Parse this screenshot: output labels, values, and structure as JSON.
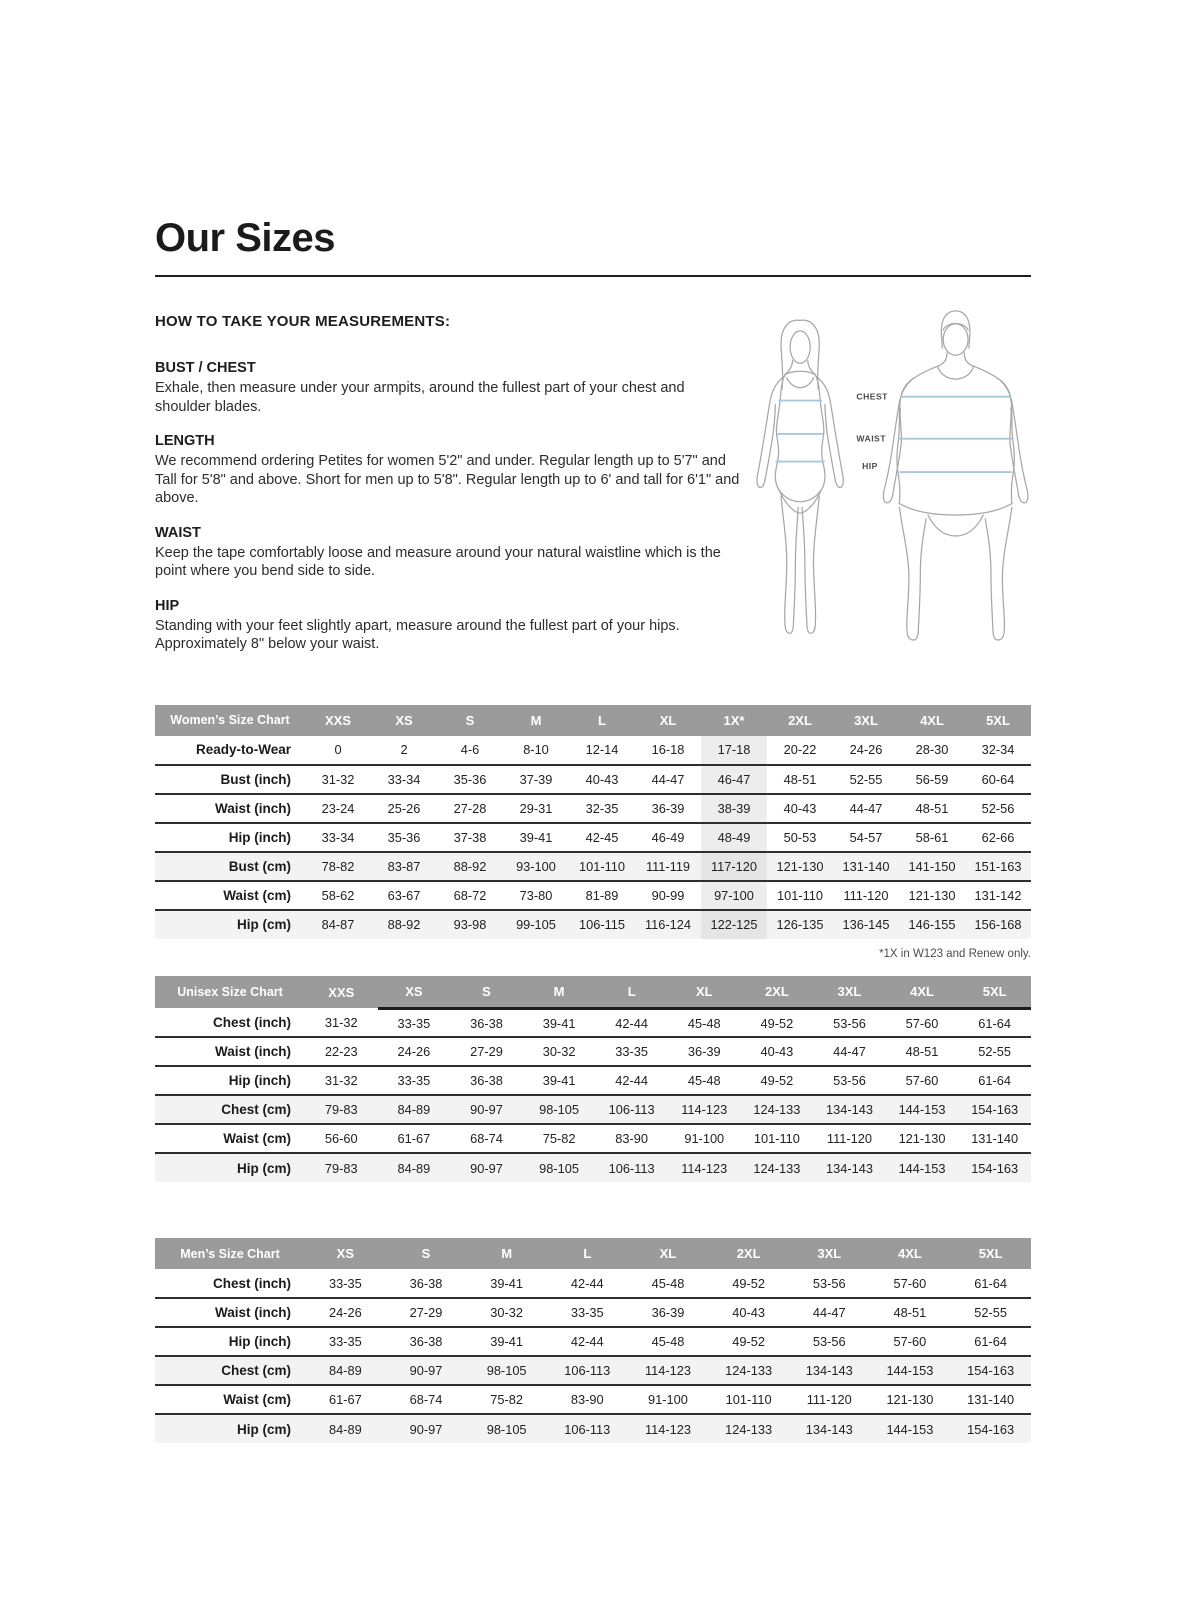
{
  "page": {
    "title": "Our Sizes"
  },
  "instructions": {
    "heading": "HOW TO TAKE YOUR MEASUREMENTS:",
    "sections": [
      {
        "title": "BUST / CHEST",
        "body": "Exhale, then measure under your armpits, around the fullest part of your chest and shoulder blades."
      },
      {
        "title": "LENGTH",
        "body": "We recommend ordering Petites for women 5'2\" and under. Regular length up to 5'7\" and Tall for 5'8\" and above. Short for men up to 5'8\". Regular length up to 6' and tall for 6'1\" and above."
      },
      {
        "title": "WAIST",
        "body": "Keep the tape comfortably loose and measure around your natural waistline which is the point where you bend side to side."
      },
      {
        "title": "HIP",
        "body": "Standing with your feet slightly apart, measure around the fullest part of your hips. Approximately 8\" below your waist."
      }
    ]
  },
  "figure": {
    "labels": [
      "CHEST",
      "WAIST",
      "HIP"
    ],
    "line_color": "#a9c8d6",
    "outline_color": "#a6a6a6",
    "label_color": "#4a4a4a"
  },
  "tables": [
    {
      "name": "Women’s Size Chart",
      "columns": [
        "XXS",
        "XS",
        "S",
        "M",
        "L",
        "XL",
        "1X*",
        "2XL",
        "3XL",
        "4XL",
        "5XL"
      ],
      "highlight_col": 6,
      "header_underline_from": null,
      "rows": [
        {
          "label": "Ready-to-Wear",
          "shaded": false,
          "cells": [
            "0",
            "2",
            "4-6",
            "8-10",
            "12-14",
            "16-18",
            "17-18",
            "20-22",
            "24-26",
            "28-30",
            "32-34"
          ]
        },
        {
          "label": "Bust (inch)",
          "shaded": false,
          "cells": [
            "31-32",
            "33-34",
            "35-36",
            "37-39",
            "40-43",
            "44-47",
            "46-47",
            "48-51",
            "52-55",
            "56-59",
            "60-64"
          ]
        },
        {
          "label": "Waist (inch)",
          "shaded": false,
          "cells": [
            "23-24",
            "25-26",
            "27-28",
            "29-31",
            "32-35",
            "36-39",
            "38-39",
            "40-43",
            "44-47",
            "48-51",
            "52-56"
          ]
        },
        {
          "label": "Hip (inch)",
          "shaded": false,
          "cells": [
            "33-34",
            "35-36",
            "37-38",
            "39-41",
            "42-45",
            "46-49",
            "48-49",
            "50-53",
            "54-57",
            "58-61",
            "62-66"
          ]
        },
        {
          "label": "Bust (cm)",
          "shaded": true,
          "cells": [
            "78-82",
            "83-87",
            "88-92",
            "93-100",
            "101-110",
            "111-119",
            "117-120",
            "121-130",
            "131-140",
            "141-150",
            "151-163"
          ]
        },
        {
          "label": "Waist (cm)",
          "shaded": false,
          "cells": [
            "58-62",
            "63-67",
            "68-72",
            "73-80",
            "81-89",
            "90-99",
            "97-100",
            "101-110",
            "111-120",
            "121-130",
            "131-142"
          ]
        },
        {
          "label": "Hip (cm)",
          "shaded": true,
          "cells": [
            "84-87",
            "88-92",
            "93-98",
            "99-105",
            "106-115",
            "116-124",
            "122-125",
            "126-135",
            "136-145",
            "146-155",
            "156-168"
          ]
        }
      ],
      "footnote": "*1X in W123 and Renew only."
    },
    {
      "name": "Unisex Size Chart",
      "columns": [
        "XXS",
        "XS",
        "S",
        "M",
        "L",
        "XL",
        "2XL",
        "3XL",
        "4XL",
        "5XL"
      ],
      "highlight_col": null,
      "header_underline_from": 1,
      "rows": [
        {
          "label": "Chest (inch)",
          "shaded": false,
          "cells": [
            "31-32",
            "33-35",
            "36-38",
            "39-41",
            "42-44",
            "45-48",
            "49-52",
            "53-56",
            "57-60",
            "61-64"
          ]
        },
        {
          "label": "Waist (inch)",
          "shaded": false,
          "cells": [
            "22-23",
            "24-26",
            "27-29",
            "30-32",
            "33-35",
            "36-39",
            "40-43",
            "44-47",
            "48-51",
            "52-55"
          ]
        },
        {
          "label": "Hip (inch)",
          "shaded": false,
          "cells": [
            "31-32",
            "33-35",
            "36-38",
            "39-41",
            "42-44",
            "45-48",
            "49-52",
            "53-56",
            "57-60",
            "61-64"
          ]
        },
        {
          "label": "Chest (cm)",
          "shaded": true,
          "cells": [
            "79-83",
            "84-89",
            "90-97",
            "98-105",
            "106-113",
            "114-123",
            "124-133",
            "134-143",
            "144-153",
            "154-163"
          ]
        },
        {
          "label": "Waist (cm)",
          "shaded": false,
          "cells": [
            "56-60",
            "61-67",
            "68-74",
            "75-82",
            "83-90",
            "91-100",
            "101-110",
            "111-120",
            "121-130",
            "131-140"
          ]
        },
        {
          "label": "Hip (cm)",
          "shaded": true,
          "cells": [
            "79-83",
            "84-89",
            "90-97",
            "98-105",
            "106-113",
            "114-123",
            "124-133",
            "134-143",
            "144-153",
            "154-163"
          ]
        }
      ],
      "footnote": ""
    },
    {
      "name": "Men’s Size Chart",
      "columns": [
        "XS",
        "S",
        "M",
        "L",
        "XL",
        "2XL",
        "3XL",
        "4XL",
        "5XL"
      ],
      "highlight_col": null,
      "header_underline_from": null,
      "rows": [
        {
          "label": "Chest (inch)",
          "shaded": false,
          "cells": [
            "33-35",
            "36-38",
            "39-41",
            "42-44",
            "45-48",
            "49-52",
            "53-56",
            "57-60",
            "61-64"
          ]
        },
        {
          "label": "Waist (inch)",
          "shaded": false,
          "cells": [
            "24-26",
            "27-29",
            "30-32",
            "33-35",
            "36-39",
            "40-43",
            "44-47",
            "48-51",
            "52-55"
          ]
        },
        {
          "label": "Hip (inch)",
          "shaded": false,
          "cells": [
            "33-35",
            "36-38",
            "39-41",
            "42-44",
            "45-48",
            "49-52",
            "53-56",
            "57-60",
            "61-64"
          ]
        },
        {
          "label": "Chest (cm)",
          "shaded": true,
          "cells": [
            "84-89",
            "90-97",
            "98-105",
            "106-113",
            "114-123",
            "124-133",
            "134-143",
            "144-153",
            "154-163"
          ]
        },
        {
          "label": "Waist (cm)",
          "shaded": false,
          "cells": [
            "61-67",
            "68-74",
            "75-82",
            "83-90",
            "91-100",
            "101-110",
            "111-120",
            "121-130",
            "131-140"
          ]
        },
        {
          "label": "Hip (cm)",
          "shaded": true,
          "cells": [
            "84-89",
            "90-97",
            "98-105",
            "106-113",
            "114-123",
            "124-133",
            "134-143",
            "144-153",
            "154-163"
          ]
        }
      ],
      "footnote": ""
    }
  ]
}
